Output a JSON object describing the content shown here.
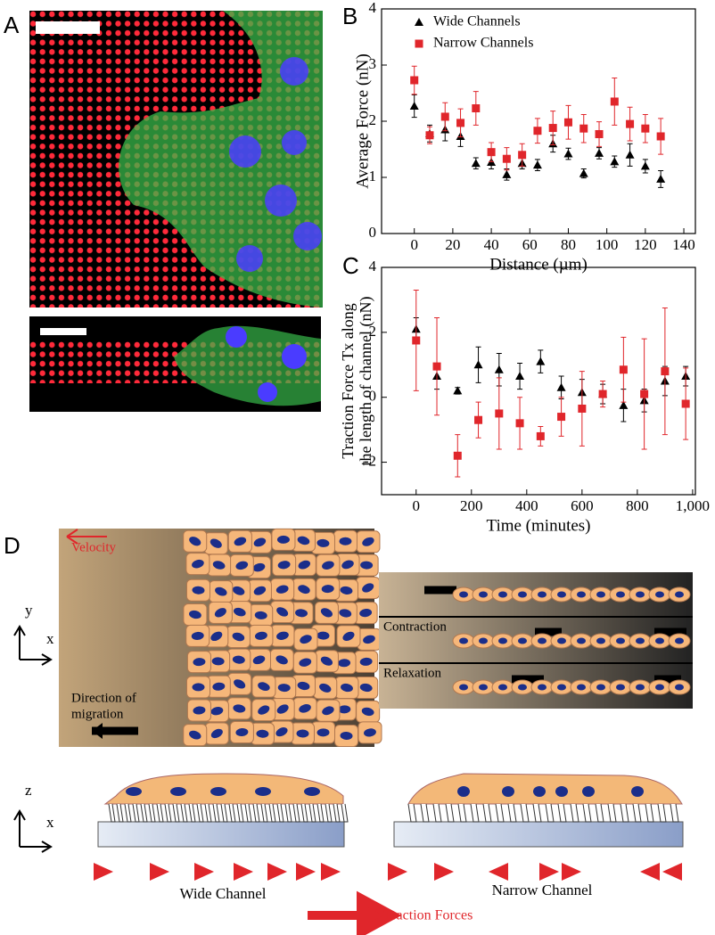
{
  "panel_labels": [
    "A",
    "B",
    "C",
    "D"
  ],
  "chart_data": [
    {
      "type": "scatter",
      "ylabel": "Average Force (nN)",
      "xlabel": "Distance (µm)",
      "xlim": [
        -17,
        146
      ],
      "ylim": [
        0,
        4
      ],
      "xticks": [
        0,
        20,
        40,
        60,
        80,
        100,
        120,
        140
      ],
      "yticks": [
        0,
        1,
        2,
        3,
        4
      ],
      "legend": "top-left",
      "x": [
        0,
        8,
        16,
        24,
        32,
        40,
        48,
        56,
        64,
        72,
        80,
        88,
        96,
        104,
        112,
        120,
        128
      ],
      "series": [
        {
          "name": "Wide Channels",
          "color": "#000000",
          "marker": "triangle",
          "values": [
            2.27,
            1.78,
            1.85,
            1.73,
            1.25,
            1.27,
            1.05,
            1.25,
            1.22,
            1.6,
            1.42,
            1.07,
            1.43,
            1.28,
            1.4,
            1.2,
            0.97
          ],
          "errors": [
            0.2,
            0.15,
            0.2,
            0.18,
            0.1,
            0.12,
            0.1,
            0.1,
            0.1,
            0.15,
            0.1,
            0.08,
            0.1,
            0.1,
            0.2,
            0.12,
            0.15
          ]
        },
        {
          "name": "Narrow Channels",
          "color": "#e0262b",
          "marker": "square",
          "values": [
            2.73,
            1.75,
            2.08,
            1.97,
            2.23,
            1.45,
            1.33,
            1.4,
            1.83,
            1.88,
            1.98,
            1.87,
            1.77,
            2.35,
            1.95,
            1.87,
            1.73
          ],
          "errors": [
            0.25,
            0.15,
            0.25,
            0.25,
            0.3,
            0.17,
            0.2,
            0.2,
            0.22,
            0.3,
            0.3,
            0.25,
            0.22,
            0.42,
            0.3,
            0.25,
            0.32
          ]
        }
      ]
    },
    {
      "type": "scatter",
      "ylabel": [
        "Traction Force Tx along",
        "the length of channel (nN)"
      ],
      "xlabel": "Time (minutes)",
      "xlim": [
        -125,
        1010
      ],
      "ylim": [
        -3,
        4
      ],
      "xticks": [
        0,
        200,
        400,
        600,
        800,
        {
          "value": 1000,
          "label": "1,000"
        }
      ],
      "yticks": [
        -2,
        0,
        2,
        4
      ],
      "x": [
        0,
        75,
        150,
        225,
        300,
        375,
        450,
        525,
        600,
        675,
        750,
        825,
        900,
        975
      ],
      "series": [
        {
          "name": "Wide Channels",
          "color": "#000000",
          "marker": "triangle",
          "values": [
            2.1,
            0.65,
            0.2,
            1.0,
            0.85,
            0.65,
            1.1,
            0.3,
            0.15,
            0.1,
            -0.25,
            -0.1,
            0.5,
            0.65
          ],
          "errors": [
            0.35,
            0.4,
            0.1,
            0.55,
            0.5,
            0.4,
            0.35,
            0.35,
            0.4,
            0.3,
            0.5,
            0.35,
            0.45,
            0.3
          ]
        },
        {
          "name": "Narrow Channels",
          "color": "#e0262b",
          "marker": "square",
          "values": [
            1.75,
            0.95,
            -1.8,
            -0.7,
            -0.5,
            -0.8,
            -1.2,
            -0.6,
            -0.35,
            0.1,
            0.85,
            0.1,
            0.8,
            -0.2
          ],
          "errors": [
            1.55,
            1.5,
            0.65,
            0.55,
            1.1,
            0.8,
            0.3,
            0.6,
            1.15,
            0.4,
            1.0,
            1.7,
            1.95,
            1.1
          ]
        }
      ]
    }
  ],
  "diagram": {
    "velocity": "Velocity",
    "direction": [
      "Direction of",
      "migration"
    ],
    "contraction": "Contraction",
    "relaxation": "Relaxation",
    "axes_top": [
      "y",
      "x"
    ],
    "axes_bottom": [
      "z",
      "x"
    ],
    "wide": "Wide Channel",
    "narrow": "Narrow Channel",
    "traction": "Traction Forces"
  }
}
